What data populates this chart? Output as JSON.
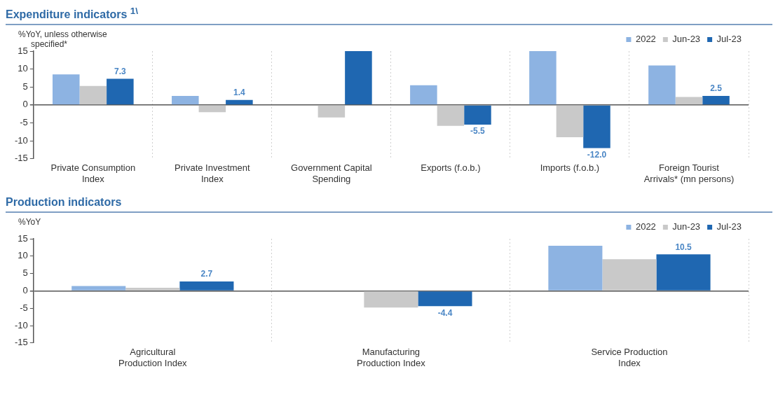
{
  "chart_data": [
    {
      "type": "bar",
      "title": "Expenditure indicators $^{1\\}$",
      "ylabel": "%YoY, unless otherwise specified*",
      "categories": [
        "Private Consumption Index",
        "Private Investment Index",
        "Government Capital Spending",
        "Exports (f.o.b.)",
        "Imports (f.o.b.)",
        "Foreign Tourist Arrivals* (mn persons)"
      ],
      "series": [
        {
          "name": "2022",
          "color": "#8db3e2",
          "values": [
            8.5,
            2.5,
            null,
            5.5,
            15,
            11
          ]
        },
        {
          "name": "Jun-23",
          "color": "#c9c9c9",
          "values": [
            5.3,
            -2,
            -3.5,
            -5.8,
            -9,
            2.2
          ]
        },
        {
          "name": "Jul-23",
          "color": "#1f67b1",
          "values": [
            7.3,
            1.4,
            15,
            -5.5,
            -12.0,
            2.5
          ],
          "value_labels": [
            "7.3",
            "1.4",
            null,
            "-5.5",
            "-12.0",
            "2.5"
          ]
        }
      ],
      "ylim": [
        -15,
        15
      ],
      "yticks": [
        -15,
        -10,
        -5,
        0,
        5,
        10,
        15
      ],
      "grid": "x",
      "legend": "top right"
    },
    {
      "type": "bar",
      "title": "Production indicators",
      "ylabel": "%YoY",
      "categories": [
        "Agricultural Production Index",
        "Manufacturing Production Index",
        "Service Production Index"
      ],
      "series": [
        {
          "name": "2022",
          "color": "#8db3e2",
          "values": [
            1.4,
            null,
            13
          ]
        },
        {
          "name": "Jun-23",
          "color": "#c9c9c9",
          "values": [
            0.9,
            -4.8,
            9.1
          ]
        },
        {
          "name": "Jul-23",
          "color": "#1f67b1",
          "values": [
            2.7,
            -4.4,
            10.5
          ],
          "value_labels": [
            "2.7",
            "-4.4",
            "10.5"
          ]
        }
      ],
      "ylim": [
        -15,
        15
      ],
      "yticks": [
        -15,
        -10,
        -5,
        0,
        5,
        10,
        15
      ],
      "grid": "x",
      "legend": "top right"
    }
  ]
}
